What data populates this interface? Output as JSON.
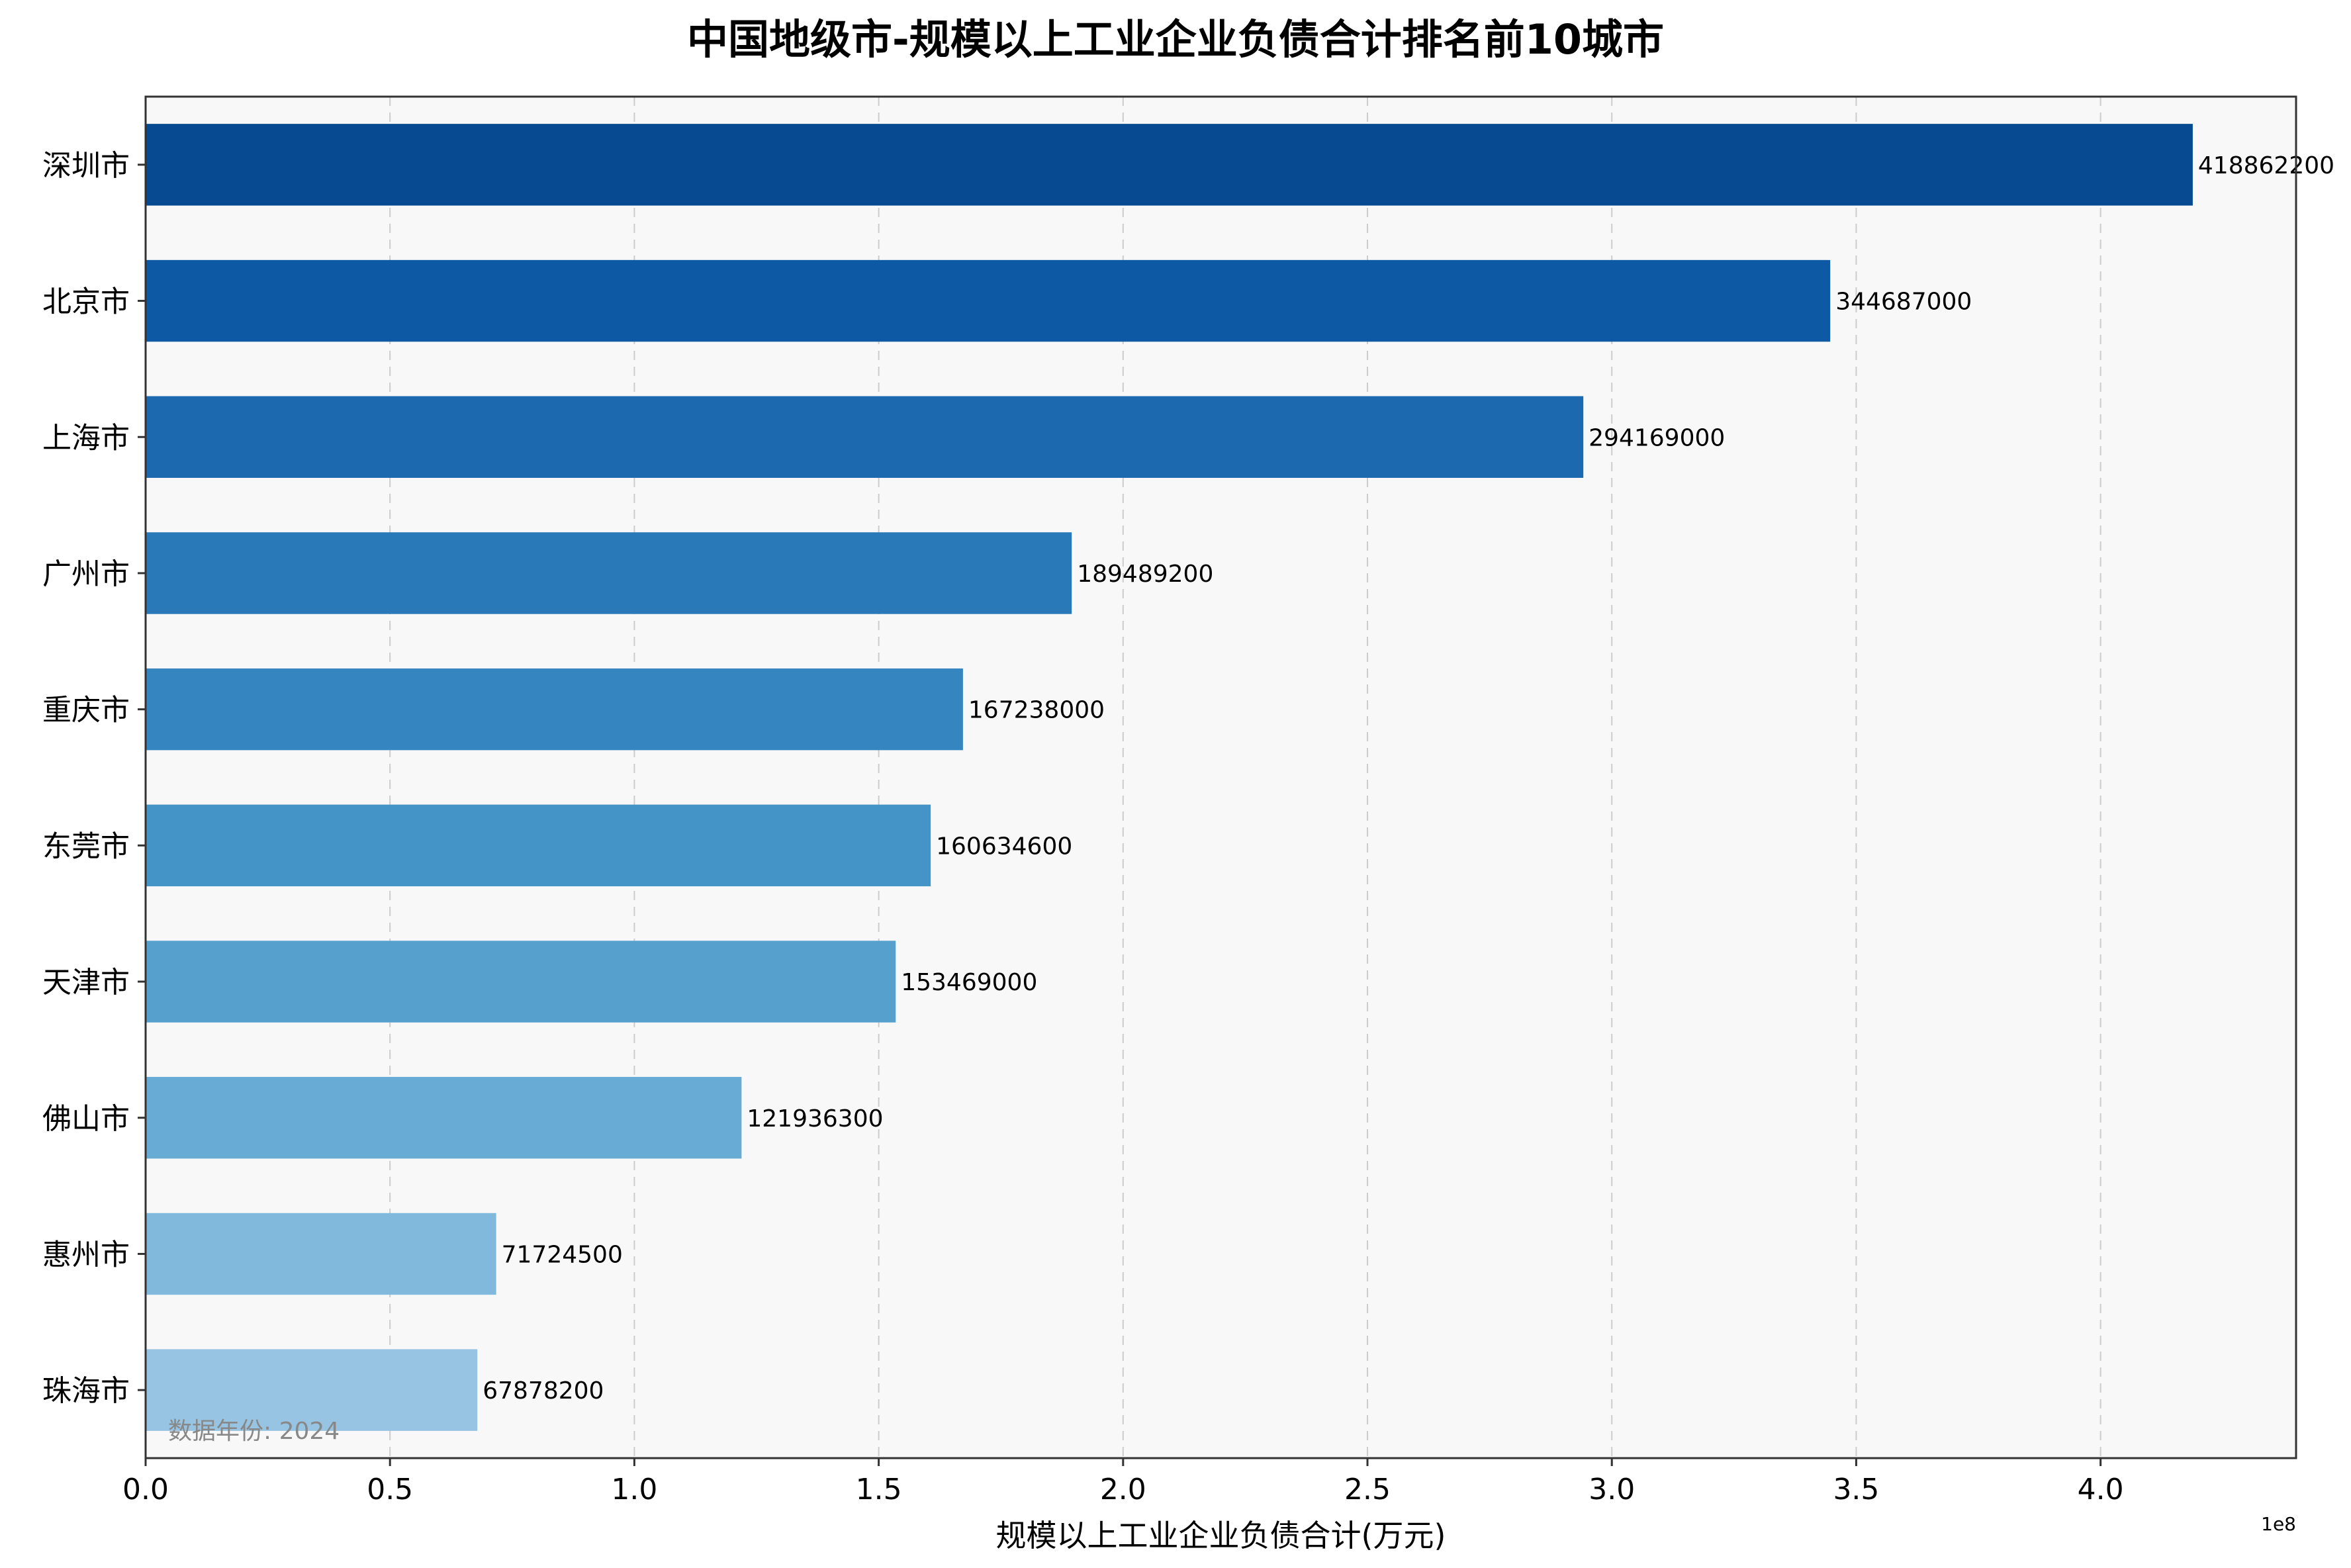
{
  "chart_data": {
    "type": "bar",
    "orientation": "horizontal",
    "title": "中国地级市-规模以上工业企业负债合计排名前10城市",
    "xlabel": "规模以上工业企业负债合计(万元)",
    "ylabel": "",
    "x_offset_label": "1e8",
    "xlim": [
      0,
      440000000
    ],
    "x_ticks": [
      0,
      50000000,
      100000000,
      150000000,
      200000000,
      250000000,
      300000000,
      350000000,
      400000000
    ],
    "x_tick_labels": [
      "0.0",
      "0.5",
      "1.0",
      "1.5",
      "2.0",
      "2.5",
      "3.0",
      "3.5",
      "4.0"
    ],
    "grid": "vertical dashed",
    "annotation": "数据年份: 2024",
    "categories": [
      "深圳市",
      "北京市",
      "上海市",
      "广州市",
      "重庆市",
      "东莞市",
      "天津市",
      "佛山市",
      "惠州市",
      "珠海市"
    ],
    "values": [
      418862200,
      344687000,
      294169000,
      189489200,
      167238000,
      160634600,
      153469000,
      121936300,
      71724500,
      67878200
    ],
    "value_labels": [
      "418862200",
      "344687000",
      "294169000",
      "189489200",
      "167238000",
      "160634600",
      "153469000",
      "121936300",
      "71724500",
      "67878200"
    ],
    "colors": [
      "#084a91",
      "#0e59a3",
      "#1c69b0",
      "#2979b9",
      "#3586c0",
      "#4594c7",
      "#56a0ce",
      "#68acd5",
      "#80b9dc",
      "#96c4e2"
    ],
    "background": "#f8f8f8"
  }
}
